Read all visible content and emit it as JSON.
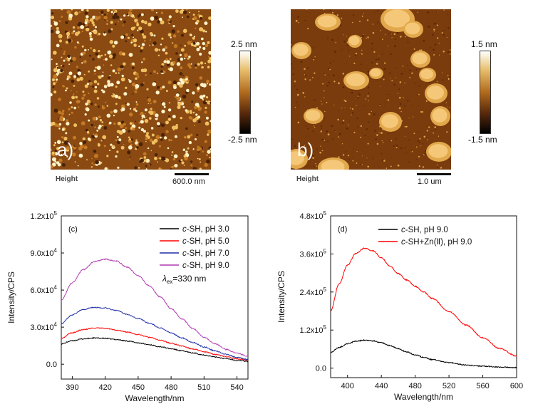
{
  "afm": {
    "a": {
      "letter": "a)",
      "height_label": "Height",
      "scale": "600.0 nm",
      "cb_top": "2.5 nm",
      "cb_bottom": "-2.5 nm"
    },
    "b": {
      "letter": "b)",
      "height_label": "Height",
      "scale": "1.0 um",
      "cb_top": "1.5 nm",
      "cb_bottom": "-1.5 nm"
    }
  },
  "colors": {
    "black": "#000000",
    "red": "#ff0000",
    "blue": "#1f2fa8",
    "magenta": "#b03ab0"
  },
  "chart_data": [
    {
      "type": "line",
      "panel": "(c)",
      "xlabel": "Wavelength/nm",
      "ylabel": "Intensity/CPS",
      "xlim": [
        380,
        550
      ],
      "ylim": [
        -12000,
        120000
      ],
      "xticks": [
        390,
        420,
        450,
        480,
        510,
        540
      ],
      "yticks": [
        {
          "value": 0,
          "label": "0.0"
        },
        {
          "value": 30000,
          "label": "3.0x10",
          "exp": "4"
        },
        {
          "value": 60000,
          "label": "6.0x10",
          "exp": "4"
        },
        {
          "value": 90000,
          "label": "9.0x10",
          "exp": "4"
        },
        {
          "value": 120000,
          "label": "1.2x10",
          "exp": "5"
        }
      ],
      "annotation": {
        "lambda": "λ",
        "sub": "ex",
        "rest": "=330 nm"
      },
      "legend_position": "top-right",
      "series": [
        {
          "name": "c-SH, pH 3.0",
          "italic": "c",
          "rest": "-SH, pH 3.0",
          "color": "#000000",
          "x": [
            380,
            390,
            400,
            410,
            420,
            430,
            440,
            450,
            460,
            470,
            480,
            490,
            500,
            510,
            520,
            530,
            540,
            550
          ],
          "y": [
            16500,
            19000,
            20500,
            21200,
            20900,
            20000,
            18800,
            17300,
            15800,
            14200,
            12500,
            10800,
            9100,
            7500,
            5900,
            4500,
            3200,
            2300
          ]
        },
        {
          "name": "c-SH, pH 5.0",
          "italic": "c",
          "rest": "-SH, pH 5.0",
          "color": "#ff0000",
          "x": [
            380,
            390,
            400,
            410,
            420,
            430,
            440,
            450,
            460,
            470,
            480,
            490,
            500,
            510,
            520,
            530,
            540,
            550
          ],
          "y": [
            21000,
            25500,
            28000,
            29300,
            29000,
            27700,
            26000,
            24000,
            21800,
            19500,
            17000,
            14700,
            12300,
            10100,
            8000,
            6100,
            4400,
            3200
          ]
        },
        {
          "name": "c-SH, pH 7.0",
          "italic": "c",
          "rest": "-SH, pH 7.0",
          "color": "#1f2fa8",
          "x": [
            380,
            390,
            400,
            410,
            420,
            430,
            440,
            450,
            460,
            470,
            480,
            490,
            500,
            510,
            520,
            530,
            540,
            550
          ],
          "y": [
            33000,
            40000,
            44300,
            46000,
            45500,
            43500,
            40400,
            37000,
            33300,
            29300,
            25300,
            21300,
            17500,
            14000,
            10800,
            8000,
            5600,
            3900
          ]
        },
        {
          "name": "c-SH, pH 9.0",
          "italic": "c",
          "rest": "-SH, pH 9.0",
          "color": "#b03ab0",
          "x": [
            380,
            390,
            400,
            410,
            420,
            430,
            440,
            450,
            460,
            470,
            480,
            490,
            500,
            510,
            520,
            530,
            540,
            550
          ],
          "y": [
            52000,
            66000,
            76500,
            83000,
            85000,
            83500,
            78500,
            71500,
            63500,
            54500,
            45000,
            36500,
            28800,
            22000,
            16500,
            12000,
            8800,
            6500
          ]
        }
      ]
    },
    {
      "type": "line",
      "panel": "(d)",
      "xlabel": "Wavelength/nm",
      "ylabel": "Intensity/CPS",
      "xlim": [
        380,
        600
      ],
      "ylim": [
        -30000,
        480000
      ],
      "xticks": [
        400,
        440,
        480,
        520,
        560,
        600
      ],
      "yticks": [
        {
          "value": 0,
          "label": "0.0"
        },
        {
          "value": 120000,
          "label": "1.2x10",
          "exp": "5"
        },
        {
          "value": 240000,
          "label": "2.4x10",
          "exp": "5"
        },
        {
          "value": 360000,
          "label": "3.6x10",
          "exp": "5"
        },
        {
          "value": 480000,
          "label": "4.8x10",
          "exp": "5"
        }
      ],
      "legend_position": "top-right",
      "series": [
        {
          "name": "c-SH, pH 9.0",
          "italic": "c",
          "rest": "-SH, pH 9.0",
          "color": "#000000",
          "x": [
            380,
            390,
            400,
            410,
            420,
            430,
            440,
            450,
            460,
            470,
            480,
            490,
            500,
            520,
            540,
            560,
            580,
            600
          ],
          "y": [
            50000,
            65000,
            77000,
            85000,
            88000,
            86000,
            80000,
            71000,
            61000,
            51000,
            42000,
            34000,
            27000,
            17000,
            10000,
            6000,
            3500,
            2000
          ]
        },
        {
          "name": "c-SH+Zn(Ⅱ), pH 9.0",
          "italic": "c",
          "rest": "-SH+Zn(Ⅱ), pH 9.0",
          "color": "#ff0000",
          "x": [
            380,
            390,
            400,
            410,
            420,
            430,
            440,
            450,
            460,
            470,
            480,
            490,
            500,
            520,
            540,
            560,
            580,
            600
          ],
          "y": [
            180000,
            265000,
            325000,
            362000,
            378000,
            370000,
            348000,
            322000,
            298000,
            278000,
            258000,
            240000,
            220000,
            178000,
            136000,
            96000,
            62000,
            38000
          ]
        }
      ]
    }
  ]
}
